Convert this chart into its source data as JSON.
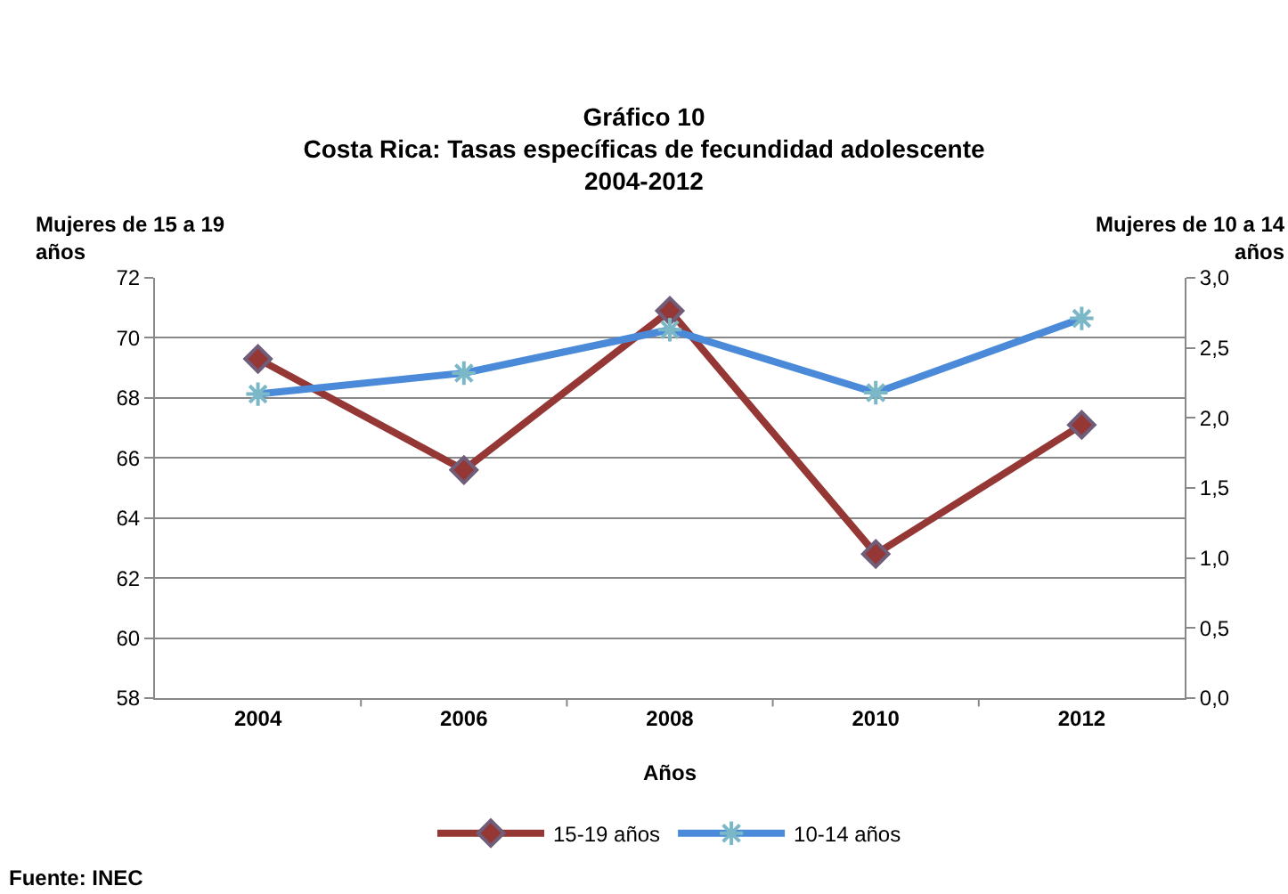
{
  "chart_data": {
    "type": "line",
    "title": "Gráfico 10\nCosta Rica: Tasas específicas de fecundidad adolescente\n2004-2012",
    "xlabel": "Años",
    "ylabel": "Mujeres de 15 a 19 años",
    "y2label": "Mujeres de 10 a 14 años",
    "categories": [
      "2004",
      "2006",
      "2008",
      "2010",
      "2012"
    ],
    "series": [
      {
        "name": "15-19 años",
        "color": "#953735",
        "marker": "diamond",
        "values": [
          69.3,
          65.6,
          70.9,
          62.8,
          67.1
        ]
      },
      {
        "name": "10-14 años",
        "color": "#4a8ad8",
        "marker": "cross",
        "axis": "y2",
        "values": [
          2.17,
          2.32,
          2.63,
          2.18,
          2.71
        ]
      }
    ],
    "ylim": [
      58,
      72
    ],
    "yticks": [
      58,
      60,
      62,
      64,
      66,
      68,
      70,
      72
    ],
    "y2lim": [
      0,
      3
    ],
    "y2ticks": [
      {
        "value": 0,
        "label": "0,0"
      },
      {
        "value": 0.5,
        "label": "0,5"
      },
      {
        "value": 1,
        "label": "1,0"
      },
      {
        "value": 1.5,
        "label": "1,5"
      },
      {
        "value": 2,
        "label": "2,0"
      },
      {
        "value": 2.5,
        "label": "2,5"
      },
      {
        "value": 3,
        "label": "3,0"
      }
    ],
    "grid": "y",
    "legend": "bottom",
    "line_style": "solid",
    "annotations": [
      "Fuente: INEC"
    ]
  }
}
